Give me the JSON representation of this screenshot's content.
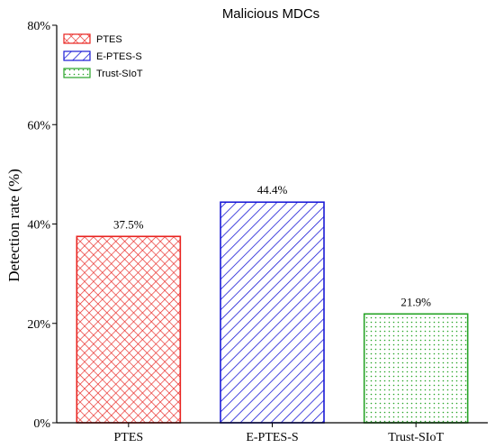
{
  "chart_data": {
    "type": "bar",
    "title": "Malicious MDCs",
    "ylabel": "Detection rate (%)",
    "xlabel": "",
    "categories": [
      "PTES",
      "E-PTES-S",
      "Trust-SIoT"
    ],
    "values": [
      37.5,
      44.4,
      21.9
    ],
    "data_labels": [
      "37.5%",
      "44.4%",
      "21.9%"
    ],
    "ylim": [
      0,
      80
    ],
    "yticks": [
      0,
      20,
      40,
      60,
      80
    ],
    "ytick_labels": [
      "0%",
      "20%",
      "40%",
      "60%",
      "80%"
    ],
    "grid": false,
    "legend_position": "top-left",
    "legend": [
      {
        "label": "PTES",
        "color": "#e8231f",
        "pattern": "crosshatch"
      },
      {
        "label": "E-PTES-S",
        "color": "#1a1ad6",
        "pattern": "diagonal"
      },
      {
        "label": "Trust-SIoT",
        "color": "#27a427",
        "pattern": "dots"
      }
    ]
  }
}
